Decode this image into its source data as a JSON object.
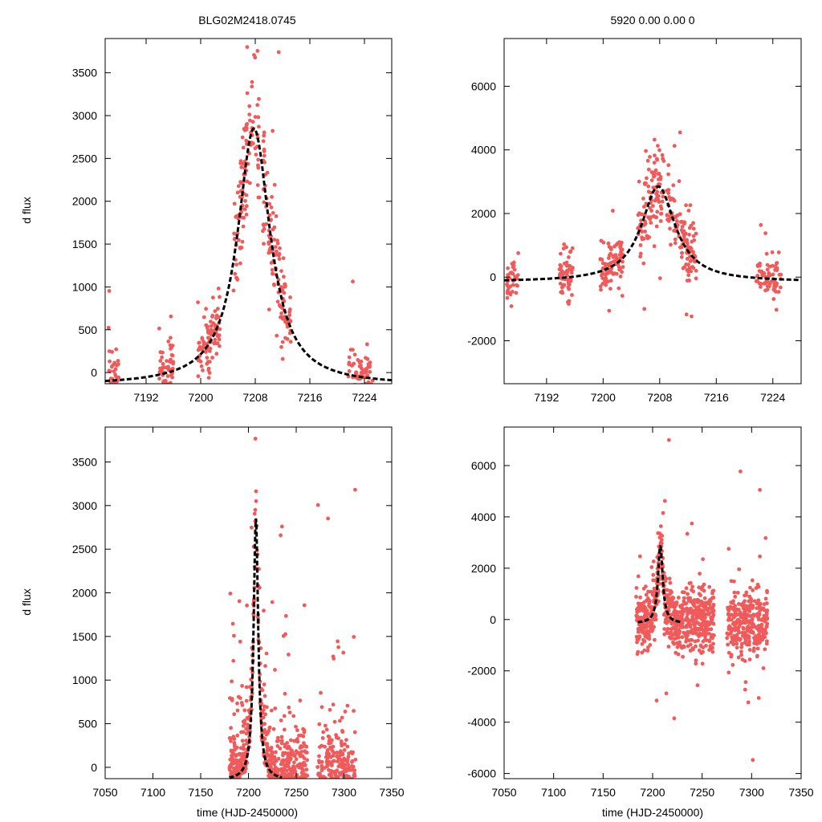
{
  "figure": {
    "title_left": "BLG02M2418.0745",
    "title_right": "5920   0.00   0.00   0",
    "ylabel": "d flux",
    "xlabel": "time (HJD-2450000)"
  },
  "colors": {
    "points": "#f05a5a",
    "model": "#000000",
    "axes": "#000000"
  },
  "model": {
    "type": "lorentzian",
    "t0": 7207.8,
    "halfwidth": 2.9,
    "peak": 3000,
    "baseline": -150
  },
  "chart_data": [
    {
      "id": "top-left",
      "type": "scatter",
      "title": "BLG02M2418.0745",
      "ylabel": "d flux",
      "xlabel": "",
      "xlim": [
        7186,
        7228
      ],
      "ylim": [
        -130,
        3900
      ],
      "xticks": [
        7192,
        7200,
        7208,
        7216,
        7224
      ],
      "yticks": [
        0,
        500,
        1000,
        1500,
        2000,
        2500,
        3000,
        3500
      ],
      "series": [
        {
          "name": "data",
          "style": "points",
          "gen": "zoom",
          "seed": 11
        },
        {
          "name": "model",
          "style": "dashed",
          "model": true
        }
      ]
    },
    {
      "id": "top-right",
      "type": "scatter",
      "title": "5920   0.00   0.00   0",
      "ylabel": "",
      "xlabel": "",
      "xlim": [
        7186,
        7228
      ],
      "ylim": [
        -3350,
        7500
      ],
      "xticks": [
        7192,
        7200,
        7208,
        7216,
        7224
      ],
      "yticks": [
        -2000,
        0,
        2000,
        4000,
        6000
      ],
      "series": [
        {
          "name": "data",
          "style": "points",
          "gen": "zoom_wide",
          "seed": 23
        },
        {
          "name": "model",
          "style": "dashed",
          "model": true
        }
      ]
    },
    {
      "id": "bottom-left",
      "type": "scatter",
      "title": "",
      "ylabel": "d flux",
      "xlabel": "time (HJD-2450000)",
      "xlim": [
        7050,
        7350
      ],
      "ylim": [
        -130,
        3900
      ],
      "xticks": [
        7050,
        7100,
        7150,
        7200,
        7250,
        7300,
        7350
      ],
      "yticks": [
        0,
        500,
        1000,
        1500,
        2000,
        2500,
        3000,
        3500
      ],
      "series": [
        {
          "name": "data",
          "style": "points",
          "gen": "season",
          "seed": 37
        },
        {
          "name": "model",
          "style": "dashed",
          "model": true,
          "xrange": [
            7180,
            7235
          ]
        }
      ]
    },
    {
      "id": "bottom-right",
      "type": "scatter",
      "title": "",
      "ylabel": "",
      "xlabel": "time (HJD-2450000)",
      "xlim": [
        7050,
        7350
      ],
      "ylim": [
        -6200,
        7500
      ],
      "xticks": [
        7050,
        7100,
        7150,
        7200,
        7250,
        7300,
        7350
      ],
      "yticks": [
        -6000,
        -4000,
        -2000,
        0,
        2000,
        4000,
        6000
      ],
      "series": [
        {
          "name": "data",
          "style": "points",
          "gen": "season_wide",
          "seed": 53
        },
        {
          "name": "model",
          "style": "dashed",
          "model": true,
          "xrange": [
            7185,
            7230
          ]
        }
      ]
    }
  ]
}
